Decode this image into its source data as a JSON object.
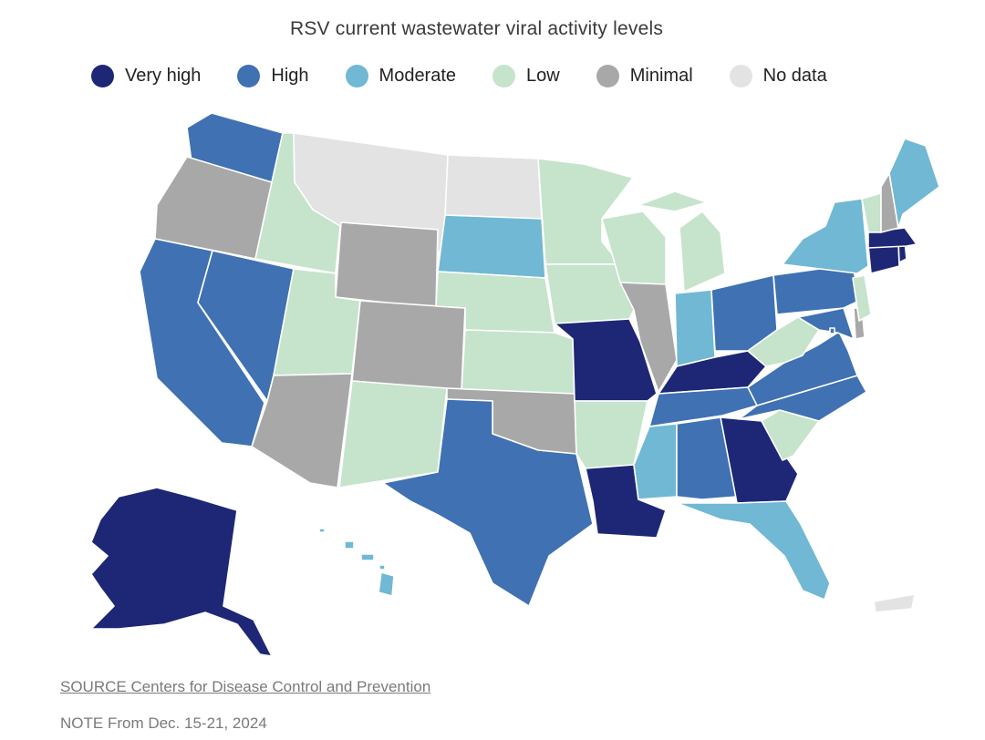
{
  "title": "RSV current wastewater viral activity levels",
  "legend": [
    {
      "level": "very_high",
      "label": "Very high",
      "color": "#1e2775"
    },
    {
      "level": "high",
      "label": "High",
      "color": "#3f71b3"
    },
    {
      "level": "moderate",
      "label": "Moderate",
      "color": "#70b8d4"
    },
    {
      "level": "low",
      "label": "Low",
      "color": "#c6e3cc"
    },
    {
      "level": "minimal",
      "label": "Minimal",
      "color": "#a8a8a8"
    },
    {
      "level": "no_data",
      "label": "No data",
      "color": "#e3e3e3"
    }
  ],
  "states": {
    "WA": "high",
    "OR": "minimal",
    "CA": "high",
    "NV": "high",
    "ID": "low",
    "MT": "no_data",
    "WY": "minimal",
    "UT": "low",
    "AZ": "minimal",
    "CO": "minimal",
    "NM": "low",
    "ND": "no_data",
    "SD": "moderate",
    "NE": "low",
    "KS": "low",
    "OK": "minimal",
    "TX": "high",
    "MN": "low",
    "IA": "low",
    "MO": "very_high",
    "AR": "low",
    "LA": "very_high",
    "WI": "low",
    "IL": "minimal",
    "MI": "low",
    "IN": "moderate",
    "OH": "high",
    "KY": "very_high",
    "TN": "high",
    "MS": "moderate",
    "AL": "high",
    "GA": "very_high",
    "FL": "moderate",
    "SC": "low",
    "NC": "high",
    "VA": "high",
    "WV": "low",
    "MD": "high",
    "DE": "minimal",
    "DC": "high",
    "PA": "high",
    "NJ": "low",
    "NY": "moderate",
    "CT": "very_high",
    "RI": "very_high",
    "MA": "very_high",
    "VT": "low",
    "NH": "minimal",
    "ME": "moderate",
    "AK": "very_high",
    "HI": "moderate",
    "PR": "no_data"
  },
  "source": "SOURCE Centers for Disease Control and Prevention",
  "note": "NOTE From Dec. 15-21, 2024"
}
